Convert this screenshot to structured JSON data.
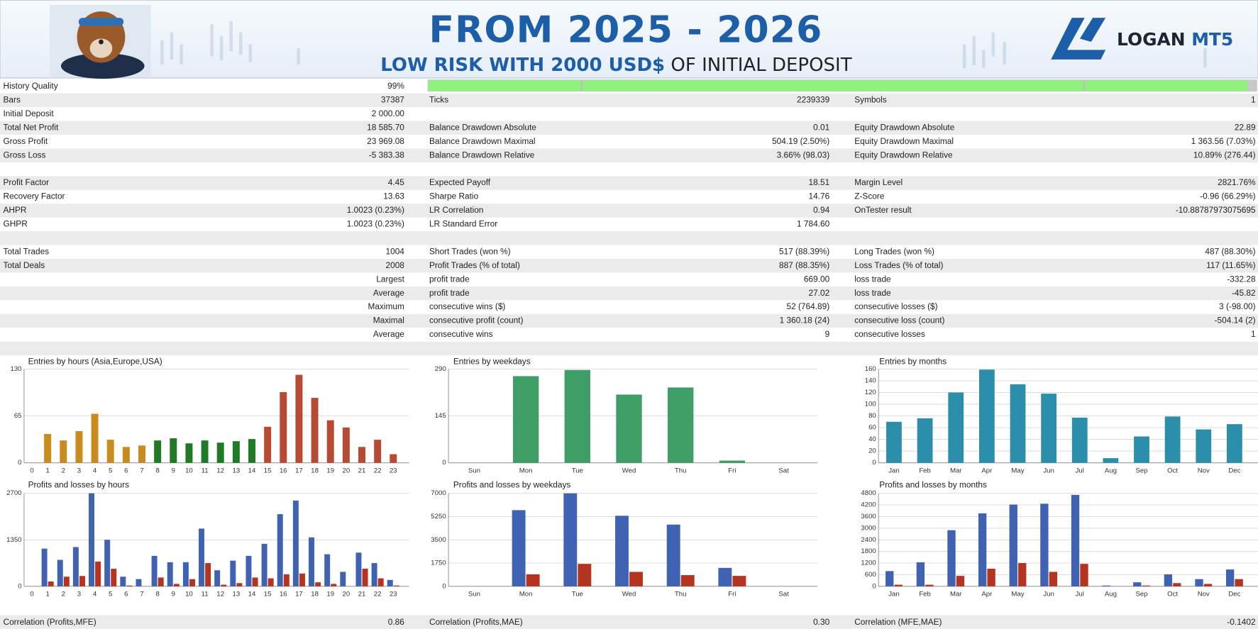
{
  "header": {
    "title": "FROM 2025 - 2026",
    "subtitle_bold": "LOW RISK WITH 2000 USD$",
    "subtitle_rest": "OF INITIAL DEPOSIT",
    "logo_name": "LOGAN",
    "logo_suffix": "MT5"
  },
  "stats": {
    "rows": [
      [
        {
          "label": "History Quality",
          "value": "99%"
        },
        null,
        null
      ],
      [
        {
          "label": "Bars",
          "value": "37387"
        },
        {
          "label": "Ticks",
          "value": "2239339"
        },
        {
          "label": "Symbols",
          "value": "1"
        }
      ],
      [
        {
          "label": "Initial Deposit",
          "value": "2 000.00"
        },
        null,
        null
      ],
      [
        {
          "label": "Total Net Profit",
          "value": "18 585.70"
        },
        {
          "label": "Balance Drawdown Absolute",
          "value": "0.01"
        },
        {
          "label": "Equity Drawdown Absolute",
          "value": "22.89"
        }
      ],
      [
        {
          "label": "Gross Profit",
          "value": "23 969.08"
        },
        {
          "label": "Balance Drawdown Maximal",
          "value": "504.19 (2.50%)"
        },
        {
          "label": "Equity Drawdown Maximal",
          "value": "1 363.56 (7.03%)"
        }
      ],
      [
        {
          "label": "Gross Loss",
          "value": "-5 383.38"
        },
        {
          "label": "Balance Drawdown Relative",
          "value": "3.66% (98.03)"
        },
        {
          "label": "Equity Drawdown Relative",
          "value": "10.89% (276.44)"
        }
      ],
      null,
      [
        {
          "label": "Profit Factor",
          "value": "4.45"
        },
        {
          "label": "Expected Payoff",
          "value": "18.51"
        },
        {
          "label": "Margin Level",
          "value": "2821.76%"
        }
      ],
      [
        {
          "label": "Recovery Factor",
          "value": "13.63"
        },
        {
          "label": "Sharpe Ratio",
          "value": "14.76"
        },
        {
          "label": "Z-Score",
          "value": "-0.96 (66.29%)"
        }
      ],
      [
        {
          "label": "AHPR",
          "value": "1.0023 (0.23%)"
        },
        {
          "label": "LR Correlation",
          "value": "0.94"
        },
        {
          "label": "OnTester result",
          "value": "-10.88787973075695"
        }
      ],
      [
        {
          "label": "GHPR",
          "value": "1.0023 (0.23%)"
        },
        {
          "label": "LR Standard Error",
          "value": "1 784.60"
        },
        null
      ],
      null,
      [
        {
          "label": "Total Trades",
          "value": "1004"
        },
        {
          "label": "Short Trades (won %)",
          "value": "517 (88.39%)"
        },
        {
          "label": "Long Trades (won %)",
          "value": "487 (88.30%)"
        }
      ],
      [
        {
          "label": "Total Deals",
          "value": "2008"
        },
        {
          "label": "Profit Trades (% of total)",
          "value": "887 (88.35%)"
        },
        {
          "label": "Loss Trades (% of total)",
          "value": "117 (11.65%)"
        }
      ],
      [
        {
          "value": "Largest"
        },
        {
          "label": "profit trade",
          "value": "669.00"
        },
        {
          "label": "loss trade",
          "value": "-332.28"
        }
      ],
      [
        {
          "value": "Average"
        },
        {
          "label": "profit trade",
          "value": "27.02"
        },
        {
          "label": "loss trade",
          "value": "-45.82"
        }
      ],
      [
        {
          "value": "Maximum"
        },
        {
          "label": "consecutive wins ($)",
          "value": "52 (764.89)"
        },
        {
          "label": "consecutive losses ($)",
          "value": "3 (-98.00)"
        }
      ],
      [
        {
          "value": "Maximal"
        },
        {
          "label": "consecutive profit (count)",
          "value": "1 360.18 (24)"
        },
        {
          "label": "consecutive loss (count)",
          "value": "-504.14 (2)"
        }
      ],
      [
        {
          "value": "Average"
        },
        {
          "label": "consecutive wins",
          "value": "9"
        },
        {
          "label": "consecutive losses",
          "value": "1"
        }
      ],
      null
    ],
    "footer": [
      {
        "label": "Correlation (Profits,MFE)",
        "value": "0.86"
      },
      {
        "label": "Correlation (Profits,MAE)",
        "value": "0.30"
      },
      {
        "label": "Correlation (MFE,MAE)",
        "value": "-0.1402"
      }
    ]
  },
  "chart_data": [
    {
      "type": "bar",
      "title": "Entries by hours (Asia,Europe,USA)",
      "categories": [
        "0",
        "1",
        "2",
        "3",
        "4",
        "5",
        "6",
        "7",
        "8",
        "9",
        "10",
        "11",
        "12",
        "13",
        "14",
        "15",
        "16",
        "17",
        "18",
        "19",
        "20",
        "21",
        "22",
        "23"
      ],
      "values": [
        0,
        40,
        31,
        44,
        68,
        32,
        22,
        24,
        31,
        34,
        27,
        31,
        28,
        30,
        33,
        50,
        98,
        122,
        90,
        59,
        49,
        22,
        32,
        12
      ],
      "colors": [
        "#c98a1e",
        "#c98a1e",
        "#c98a1e",
        "#c98a1e",
        "#c98a1e",
        "#c98a1e",
        "#c98a1e",
        "#c98a1e",
        "#1f7a25",
        "#1f7a25",
        "#1f7a25",
        "#1f7a25",
        "#1f7a25",
        "#1f7a25",
        "#1f7a25",
        "#b84a33",
        "#b84a33",
        "#b84a33",
        "#b84a33",
        "#b84a33",
        "#b84a33",
        "#b84a33",
        "#b84a33",
        "#b84a33"
      ],
      "ylim": [
        0,
        130
      ],
      "yticks": [
        0,
        65,
        130
      ],
      "grid": true
    },
    {
      "type": "bar",
      "title": "Entries by weekdays",
      "categories": [
        "Sun",
        "Mon",
        "Tue",
        "Wed",
        "Thu",
        "Fri",
        "Sat"
      ],
      "values": [
        0,
        268,
        287,
        211,
        233,
        7,
        0
      ],
      "color": "#3f9e66",
      "ylim": [
        0,
        290
      ],
      "yticks": [
        0,
        145,
        290
      ],
      "grid": true
    },
    {
      "type": "bar",
      "title": "Entries by months",
      "categories": [
        "Jan",
        "Feb",
        "Mar",
        "Apr",
        "May",
        "Jun",
        "Jul",
        "Aug",
        "Sep",
        "Oct",
        "Nov",
        "Dec"
      ],
      "values": [
        70,
        76,
        120,
        159,
        134,
        118,
        77,
        8,
        45,
        79,
        57,
        66
      ],
      "color": "#2b8fab",
      "ylim": [
        0,
        160
      ],
      "yticks": [
        0,
        20,
        40,
        60,
        80,
        100,
        120,
        140,
        160
      ],
      "grid": true
    },
    {
      "type": "bar",
      "title": "Profits and losses by hours",
      "categories": [
        "0",
        "1",
        "2",
        "3",
        "4",
        "5",
        "6",
        "7",
        "8",
        "9",
        "10",
        "11",
        "12",
        "13",
        "14",
        "15",
        "16",
        "17",
        "18",
        "19",
        "20",
        "21",
        "22",
        "23"
      ],
      "series": [
        {
          "color": "#3f62b2",
          "values": [
            0,
            1094,
            768,
            1140,
            2700,
            1350,
            280,
            210,
            885,
            700,
            700,
            1676,
            466,
            745,
            885,
            1234,
            2095,
            2490,
            1420,
            931,
            420,
            978,
            675,
            186
          ]
        },
        {
          "color": "#b5341f",
          "values": [
            0,
            140,
            280,
            300,
            720,
            510,
            23,
            0,
            256,
            70,
            210,
            675,
            47,
            93,
            256,
            233,
            350,
            372,
            116,
            70,
            0,
            512,
            233,
            23
          ]
        }
      ],
      "ylim": [
        0,
        2700
      ],
      "yticks": [
        0,
        1350,
        2700
      ],
      "grid": true
    },
    {
      "type": "bar",
      "title": "Profits and losses by weekdays",
      "categories": [
        "Sun",
        "Mon",
        "Tue",
        "Wed",
        "Thu",
        "Fri",
        "Sat"
      ],
      "series": [
        {
          "color": "#3f62b2",
          "values": [
            0,
            5733,
            7000,
            5310,
            4646,
            1388,
            0
          ]
        },
        {
          "color": "#b5341f",
          "values": [
            0,
            905,
            1690,
            1086,
            845,
            785,
            0
          ]
        }
      ],
      "ylim": [
        0,
        7000
      ],
      "yticks": [
        0,
        1750,
        3500,
        5250,
        7000
      ],
      "grid": true
    },
    {
      "type": "bar",
      "title": "Profits and losses by months",
      "categories": [
        "Jan",
        "Feb",
        "Mar",
        "Apr",
        "May",
        "Jun",
        "Jul",
        "Aug",
        "Sep",
        "Oct",
        "Nov",
        "Dec"
      ],
      "series": [
        {
          "color": "#3f62b2",
          "values": [
            786,
            1241,
            2897,
            3766,
            4221,
            4262,
            4717,
            41,
            207,
            621,
            372,
            869
          ]
        },
        {
          "color": "#b5341f",
          "values": [
            83,
            83,
            538,
            910,
            1200,
            745,
            1159,
            0,
            41,
            166,
            124,
            372
          ]
        }
      ],
      "ylim": [
        0,
        4800
      ],
      "yticks": [
        0,
        600,
        1200,
        1800,
        2400,
        3000,
        3600,
        4200,
        4800
      ],
      "grid": true
    }
  ]
}
